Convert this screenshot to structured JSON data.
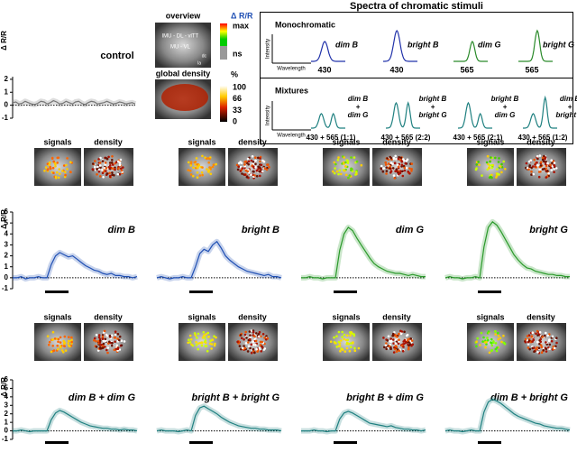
{
  "chart_data": [
    {
      "type": "line",
      "title": "control",
      "ylabel": "Δ R/R",
      "color": "#777777",
      "ylim": [
        -1,
        2.2
      ],
      "yticks": [
        -1,
        0,
        1,
        2
      ],
      "values": [
        0.2,
        0.25,
        0.1,
        0.15,
        0.3,
        0.2,
        0.1,
        0.05,
        0.15,
        0.3,
        0.25,
        0.1,
        0.2,
        0.35,
        0.25,
        0.1,
        0.15,
        0.3,
        0.2,
        0.1,
        0.25,
        0.3,
        0.15,
        0.05,
        0.2,
        0.3,
        0.25,
        0.1,
        0.15,
        0.2,
        0.3,
        0.2,
        0.1,
        0.15,
        0.25,
        0.2,
        0.1,
        0.15,
        0.2,
        0.1
      ]
    },
    {
      "type": "line",
      "title": "dim B",
      "ylabel": "Δ R/R",
      "color": "#1f4fb4",
      "ylim": [
        -1,
        6
      ],
      "yticks": [
        -1,
        0,
        1,
        2,
        3,
        4,
        5,
        6
      ],
      "values": [
        0,
        0,
        0.1,
        -0.1,
        0,
        0,
        0.1,
        0,
        0,
        1.2,
        2.0,
        2.3,
        2.1,
        1.9,
        2.0,
        1.7,
        1.4,
        1.1,
        0.9,
        0.7,
        0.6,
        0.4,
        0.3,
        0.4,
        0.2,
        0.2,
        0.1,
        0.1,
        0,
        0.1
      ]
    },
    {
      "type": "line",
      "title": "bright B",
      "color": "#1f4fb4",
      "ylim": [
        -1,
        6
      ],
      "values": [
        0,
        0.1,
        0,
        -0.1,
        0,
        0,
        0.1,
        0,
        0,
        1.0,
        2.2,
        2.6,
        2.4,
        3.0,
        3.3,
        2.7,
        2.0,
        1.6,
        1.3,
        1.0,
        0.8,
        0.6,
        0.5,
        0.4,
        0.3,
        0.2,
        0.3,
        0.1,
        0.1,
        0
      ]
    },
    {
      "type": "line",
      "title": "dim G",
      "color": "#2a9a2a",
      "ylim": [
        -1,
        6
      ],
      "values": [
        0,
        0,
        0.1,
        0,
        0,
        -0.1,
        0,
        0,
        0,
        2.5,
        4.0,
        4.6,
        4.3,
        3.6,
        3.0,
        2.4,
        1.8,
        1.3,
        1.0,
        0.8,
        0.6,
        0.5,
        0.4,
        0.4,
        0.3,
        0.2,
        0.3,
        0.2,
        0.1,
        0.1
      ]
    },
    {
      "type": "line",
      "title": "bright G",
      "color": "#2a9a2a",
      "ylim": [
        -1,
        6
      ],
      "values": [
        0,
        0.1,
        0,
        0,
        -0.1,
        0,
        0,
        0.1,
        0,
        2.8,
        4.6,
        5.1,
        4.8,
        4.2,
        3.5,
        2.8,
        2.1,
        1.6,
        1.2,
        0.9,
        0.8,
        0.6,
        0.5,
        0.4,
        0.3,
        0.3,
        0.2,
        0.2,
        0.1,
        0.1
      ]
    },
    {
      "type": "line",
      "title": "dim B + dim G",
      "ylabel": "Δ R/R",
      "color": "#1f8080",
      "ylim": [
        -1,
        6
      ],
      "yticks": [
        -1,
        0,
        1,
        2,
        3,
        4,
        5,
        6
      ],
      "values": [
        0,
        0,
        0.1,
        0,
        -0.1,
        0,
        0,
        0,
        0,
        1.3,
        2.1,
        2.4,
        2.2,
        1.9,
        1.6,
        1.3,
        1.0,
        0.8,
        0.6,
        0.5,
        0.4,
        0.3,
        0.3,
        0.2,
        0.2,
        0.1,
        0.2,
        0.1,
        0.1,
        0
      ]
    },
    {
      "type": "line",
      "title": "bright B + bright G",
      "color": "#1f8080",
      "ylim": [
        -1,
        6
      ],
      "values": [
        0,
        0.1,
        0,
        0,
        0,
        -0.1,
        0,
        0.1,
        0,
        1.8,
        2.7,
        2.9,
        2.6,
        2.3,
        2.0,
        1.6,
        1.3,
        1.0,
        0.8,
        0.6,
        0.5,
        0.4,
        0.3,
        0.3,
        0.2,
        0.2,
        0.1,
        0.1,
        0.1,
        0
      ]
    },
    {
      "type": "line",
      "title": "bright B + dim G",
      "color": "#1f8080",
      "ylim": [
        -1,
        6
      ],
      "values": [
        0,
        0,
        0,
        0.1,
        0,
        0,
        -0.1,
        0,
        0,
        1.4,
        2.1,
        2.3,
        2.1,
        1.8,
        1.5,
        1.2,
        0.9,
        0.8,
        0.7,
        0.6,
        0.5,
        0.6,
        0.4,
        0.3,
        0.2,
        0.2,
        0.1,
        0.1,
        0,
        0.1
      ]
    },
    {
      "type": "line",
      "title": "dim B + bright G",
      "color": "#1f8080",
      "ylim": [
        -1,
        6
      ],
      "values": [
        0,
        0.1,
        0,
        0,
        -0.1,
        0,
        0.1,
        0,
        0,
        2.2,
        3.4,
        3.7,
        3.5,
        3.2,
        2.8,
        2.4,
        2.0,
        1.7,
        1.5,
        1.3,
        1.1,
        0.9,
        0.8,
        0.6,
        0.5,
        0.4,
        0.3,
        0.3,
        0.2,
        0.1
      ]
    }
  ],
  "overview": {
    "title": "overview",
    "regions": [
      "lMU - DL - vlTT",
      "MU - VL",
      "dc",
      "la"
    ],
    "colorbar_label": "Δ R/R",
    "max": "max",
    "ns": "ns",
    "density_title": "global density",
    "density_unit": "%",
    "density_ticks": [
      100,
      66,
      33,
      0
    ]
  },
  "image_labels": [
    "signals",
    "density"
  ],
  "spectra": {
    "title": "Spectra of chromatic stimuli",
    "ylabel": "Intensity",
    "xlabel": "Wavelength",
    "groups": [
      {
        "name": "Monochromatic",
        "items": [
          {
            "label": [
              "dim B"
            ],
            "wavelength": 430
          },
          {
            "label": [
              "bright B"
            ],
            "wavelength": 430
          },
          {
            "label": [
              "dim G"
            ],
            "wavelength": 565
          },
          {
            "label": [
              "bright G"
            ],
            "wavelength": 565
          }
        ]
      },
      {
        "name": "Mixtures",
        "items": [
          {
            "label": [
              "dim B",
              "+",
              "dim G"
            ],
            "wavelength": "430 + 565 (1:1)"
          },
          {
            "label": [
              "bright B",
              "+",
              "bright G"
            ],
            "wavelength": "430 + 565 (2:2)"
          },
          {
            "label": [
              "bright B",
              "+",
              "dim G"
            ],
            "wavelength": "430 + 565 (2:1)"
          },
          {
            "label": [
              "dim B",
              "+",
              "bright G"
            ],
            "wavelength": "430 + 565 (1:2)"
          }
        ]
      }
    ]
  }
}
